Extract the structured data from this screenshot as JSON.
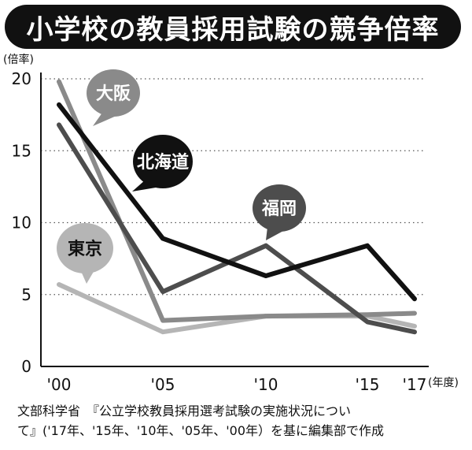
{
  "title": "小学校の教員採用試験の競争倍率",
  "chart_data": {
    "type": "line",
    "ylabel": "(倍率)",
    "xlabel": "(年度)",
    "ylim": [
      0,
      20
    ],
    "yticks": [
      "0",
      "5",
      "10",
      "15",
      "20"
    ],
    "xticks": [
      "'00",
      "'05",
      "'10",
      "'15",
      "'17"
    ],
    "x": [
      2000,
      2005,
      2010,
      2015,
      2017
    ],
    "grid": true,
    "series": [
      {
        "name": "大阪",
        "values": [
          19.8,
          3.2,
          3.5,
          3.6,
          3.7
        ],
        "color": "#8a8a8a"
      },
      {
        "name": "北海道",
        "values": [
          18.2,
          8.9,
          6.3,
          8.4,
          4.7
        ],
        "color": "#111111"
      },
      {
        "name": "福岡",
        "values": [
          16.8,
          5.2,
          8.4,
          3.1,
          2.4
        ],
        "color": "#4d4d4d"
      },
      {
        "name": "東京",
        "values": [
          5.7,
          2.4,
          3.5,
          3.5,
          2.8
        ],
        "color": "#b5b5b5"
      }
    ]
  },
  "source": {
    "line1": "文部科学省　『公立学校教員採用選考試験の実施状況につい",
    "line2": "て』('17年、'15年、'10年、'05年、'00年）を基に編集部で作成"
  }
}
